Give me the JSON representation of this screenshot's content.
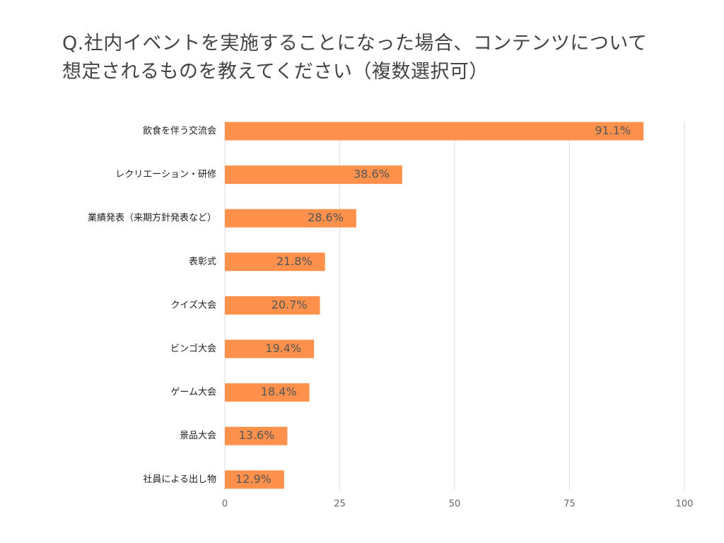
{
  "colors": {
    "bar": "#FF914D",
    "grid": "#DDDDDD",
    "text": "#222222",
    "title": "#444444"
  },
  "chart_data": {
    "type": "bar",
    "orientation": "horizontal",
    "title_lines": [
      "Q.社内イベントを実施することになった場合、コンテンツについて",
      "想定されるものを教えてください（複数選択可）"
    ],
    "categories": [
      "飲食を伴う交流会",
      "レクリエーション・研修",
      "業績発表（来期方針発表など）",
      "表彰式",
      "クイズ大会",
      "ビンゴ大会",
      "ゲーム大会",
      "景品大会",
      "社員による出し物"
    ],
    "values": [
      91.1,
      38.6,
      28.6,
      21.8,
      20.7,
      19.4,
      18.4,
      13.6,
      12.9
    ],
    "data_labels": [
      "91.1%",
      "38.6%",
      "28.6%",
      "21.8%",
      "20.7%",
      "19.4%",
      "18.4%",
      "13.6%",
      "12.9%"
    ],
    "xlim": [
      0,
      100
    ],
    "xticks": [
      0,
      25,
      50,
      75,
      100
    ],
    "xlabel": "",
    "ylabel": "",
    "grid": true,
    "legend": "none"
  }
}
